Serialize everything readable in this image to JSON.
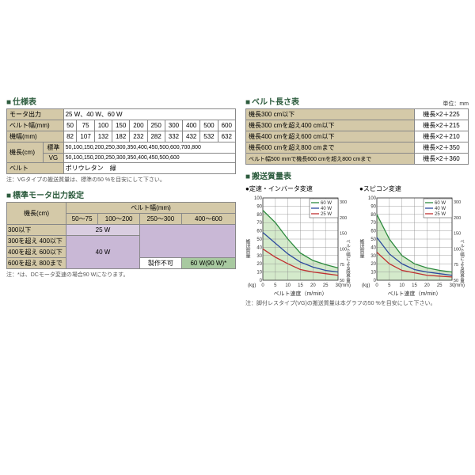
{
  "spec": {
    "title": "仕様表",
    "rows": [
      {
        "label": "モータ出力",
        "value": "25 W、40 W、60 W"
      },
      {
        "label": "ベルト幅(mm)",
        "cells": [
          "50",
          "75",
          "100",
          "150",
          "200",
          "250",
          "300",
          "400",
          "500",
          "600"
        ]
      },
      {
        "label": "機幅(mm)",
        "cells": [
          "82",
          "107",
          "132",
          "182",
          "232",
          "282",
          "332",
          "432",
          "532",
          "632"
        ]
      },
      {
        "label": "機長(cm)",
        "sub1": "標準",
        "sub1val": "50,100,150,200,250,300,350,400,450,500,600,700,800",
        "sub2": "VG",
        "sub2val": "50,100,150,200,250,300,350,400,450,500,600"
      },
      {
        "label": "ベルト",
        "value": "ポリウレタン　緑"
      }
    ],
    "note": "注：VGタイプの搬送質量は、標準の50 %を目安にして下さい。"
  },
  "motor": {
    "title": "標準モータ出力設定",
    "colhead": "ベルト幅(mm)",
    "rowhead": "機長(cm)",
    "cols": [
      "50～75",
      "100～200",
      "250～300",
      "400～600"
    ],
    "rows": [
      "300以下",
      "300を超え 400以下",
      "400を超え 600以下",
      "600を超え 800まで"
    ],
    "v25": "25 W",
    "v40": "40 W",
    "v60": "60 W(90 W)*",
    "vna": "製作不可",
    "note": "注：*は、DCモータ変速の場合90 Wになります。"
  },
  "belt": {
    "title": "ベルト長さ表",
    "unit": "単位：mm",
    "rows": [
      [
        "機長300 cm以下",
        "機長×2＋225"
      ],
      [
        "機長300 cmを超え400 cm以下",
        "機長×2＋215"
      ],
      [
        "機長400 cmを超え600 cm以下",
        "機長×2＋210"
      ],
      [
        "機長600 cmを超え800 cmまで",
        "機長×2＋350"
      ],
      [
        "ベルト幅500 mmで機長600 cmを超え800 cmまで",
        "機長×2＋360"
      ]
    ]
  },
  "load": {
    "title": "搬送質量表",
    "chart1": "定速・インバータ変速",
    "chart2": "スピコン変速",
    "legend": [
      "60 W",
      "40 W",
      "25 W"
    ],
    "legend_colors": [
      "#2d8a3e",
      "#2d4a9e",
      "#c03030"
    ],
    "area_color": "#b8dca8",
    "grid_color": "#888",
    "xlabel": "ベルト速度（m/min）",
    "ylabel": "搬送質量",
    "yunit": "(kg)",
    "rlabel": "ベルト幅による限界量",
    "runit": "(mm)",
    "xticks": [
      "0",
      "5",
      "10",
      "15",
      "20",
      "25",
      "30"
    ],
    "yticks": [
      "0",
      "10",
      "20",
      "30",
      "40",
      "50",
      "60",
      "70",
      "80",
      "90",
      "100"
    ],
    "rticks": [
      "50",
      "75",
      "100",
      "150",
      "200",
      "300"
    ],
    "curves1": {
      "60": [
        [
          0,
          85
        ],
        [
          5,
          70
        ],
        [
          10,
          50
        ],
        [
          15,
          33
        ],
        [
          20,
          24
        ],
        [
          25,
          19
        ],
        [
          30,
          15
        ]
      ],
      "40": [
        [
          0,
          58
        ],
        [
          5,
          45
        ],
        [
          10,
          32
        ],
        [
          15,
          22
        ],
        [
          20,
          16
        ],
        [
          25,
          12
        ],
        [
          30,
          10
        ]
      ],
      "25": [
        [
          0,
          38
        ],
        [
          5,
          28
        ],
        [
          10,
          20
        ],
        [
          15,
          13
        ],
        [
          20,
          10
        ],
        [
          25,
          8
        ],
        [
          30,
          6
        ]
      ]
    },
    "curves2": {
      "60": [
        [
          0,
          80
        ],
        [
          5,
          50
        ],
        [
          10,
          30
        ],
        [
          15,
          20
        ],
        [
          20,
          15
        ],
        [
          25,
          12
        ],
        [
          30,
          10
        ]
      ],
      "40": [
        [
          0,
          52
        ],
        [
          5,
          32
        ],
        [
          10,
          20
        ],
        [
          15,
          13
        ],
        [
          20,
          10
        ],
        [
          25,
          8
        ],
        [
          30,
          6
        ]
      ],
      "25": [
        [
          0,
          34
        ],
        [
          5,
          20
        ],
        [
          10,
          12
        ],
        [
          15,
          9
        ],
        [
          20,
          6
        ],
        [
          25,
          5
        ],
        [
          30,
          4
        ]
      ]
    },
    "note": "注：脚付レスタイプ(VG)の搬送質量は本グラフの50 %を目安にして下さい。"
  }
}
